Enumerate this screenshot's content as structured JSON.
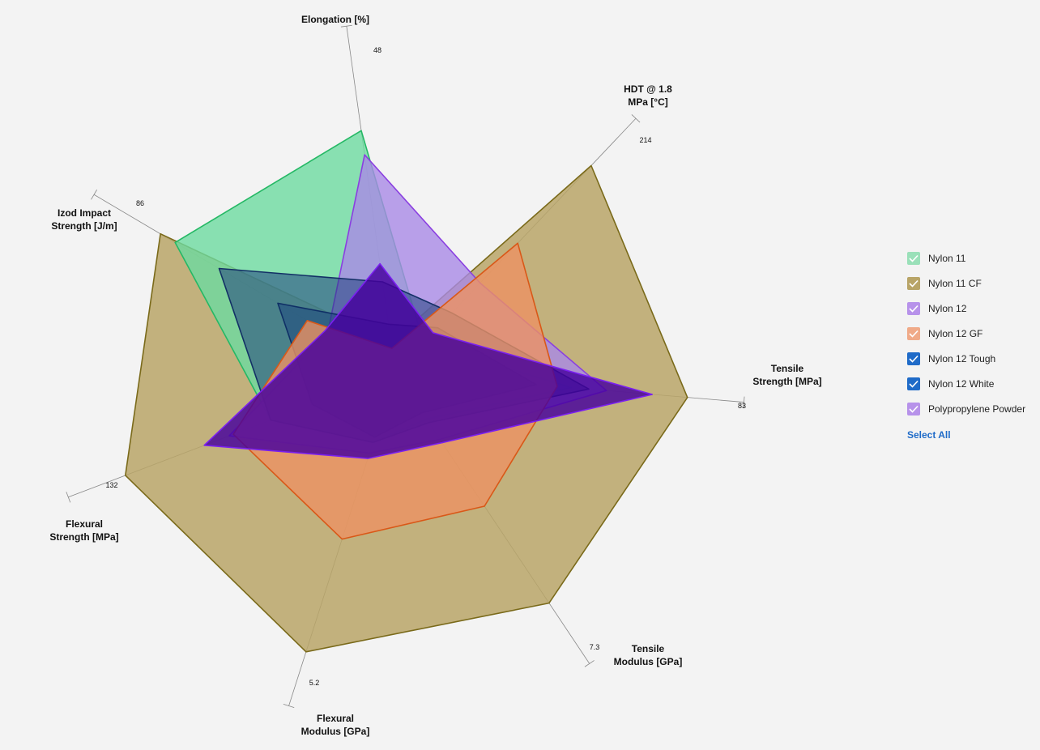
{
  "chart_data": {
    "type": "radar",
    "axes": [
      {
        "label_lines": [
          "Elongation [%]"
        ],
        "max_label": "48",
        "max": 48
      },
      {
        "label_lines": [
          "HDT @ 1.8",
          "MPa [°C]"
        ],
        "max_label": "214",
        "max": 214
      },
      {
        "label_lines": [
          "Tensile",
          "Strength [MPa]"
        ],
        "max_label": "83",
        "max": 83
      },
      {
        "label_lines": [
          "Tensile",
          "Modulus [GPa]"
        ],
        "max_label": "7.3",
        "max": 7.3
      },
      {
        "label_lines": [
          "Flexural",
          "Modulus [GPa]"
        ],
        "max_label": "5.2",
        "max": 5.2
      },
      {
        "label_lines": [
          "Flexural",
          "Strength [MPa]"
        ],
        "max_label": "132",
        "max": 132
      },
      {
        "label_lines": [
          "Izod Impact",
          "Strength [J/m]"
        ],
        "max_label": "86",
        "max": 86
      }
    ],
    "series": [
      {
        "name": "Nylon 11 CF",
        "color": "#b8a467",
        "stroke": "#7a6a1a",
        "opacity": 0.85,
        "values": [
          5,
          208,
          83,
          6.9,
          5.2,
          130,
          80
        ]
      },
      {
        "name": "Nylon 11",
        "color": "#6ddba0",
        "stroke": "#25b865",
        "opacity": 0.8,
        "values": [
          40,
          30,
          50,
          1.4,
          1.3,
          60,
          75
        ]
      },
      {
        "name": "Nylon 12",
        "color": "#a98ae6",
        "stroke": "#8a3fe0",
        "opacity": 0.8,
        "values": [
          36,
          90,
          60,
          2.0,
          1.5,
          80,
          23
        ]
      },
      {
        "name": "Nylon 12 Tough",
        "color": "#1f3f7d",
        "stroke": "#133066",
        "opacity": 0.55,
        "values": [
          15,
          60,
          55,
          1.5,
          1.3,
          60,
          60
        ]
      },
      {
        "name": "Nylon 12 White",
        "color": "#123a7a",
        "stroke": "#0f2f66",
        "opacity": 0.45,
        "values": [
          8,
          45,
          40,
          1.2,
          1.2,
          40,
          40
        ]
      },
      {
        "name": "Nylon 12 GF",
        "color": "#ec9263",
        "stroke": "#d95818",
        "opacity": 0.8,
        "values": [
          4,
          130,
          46,
          4.0,
          3.1,
          78,
          30
        ]
      },
      {
        "name": "Polypropylene Powder",
        "color": "#46009e",
        "stroke": "#7a1ff0",
        "opacity": 0.82,
        "values": [
          18,
          40,
          73,
          2.1,
          1.6,
          92,
          24
        ]
      }
    ]
  },
  "legend": {
    "items": [
      {
        "label": "Nylon 11",
        "fill": "#9ae0b9",
        "check": "#ffffff"
      },
      {
        "label": "Nylon 11 CF",
        "fill": "#b8a467",
        "check": "#ffffff"
      },
      {
        "label": "Nylon 12",
        "fill": "#b792ea",
        "check": "#ffffff"
      },
      {
        "label": "Nylon 12 GF",
        "fill": "#f0aa88",
        "check": "#ffffff"
      },
      {
        "label": "Nylon 12 Tough",
        "fill": "#1f6bc8",
        "check": "#ffffff"
      },
      {
        "label": "Nylon 12 White",
        "fill": "#1f6bc8",
        "check": "#ffffff"
      },
      {
        "label": "Polypropylene Powder",
        "fill": "#b792ea",
        "check": "#ffffff"
      }
    ],
    "select_all": "Select All"
  }
}
